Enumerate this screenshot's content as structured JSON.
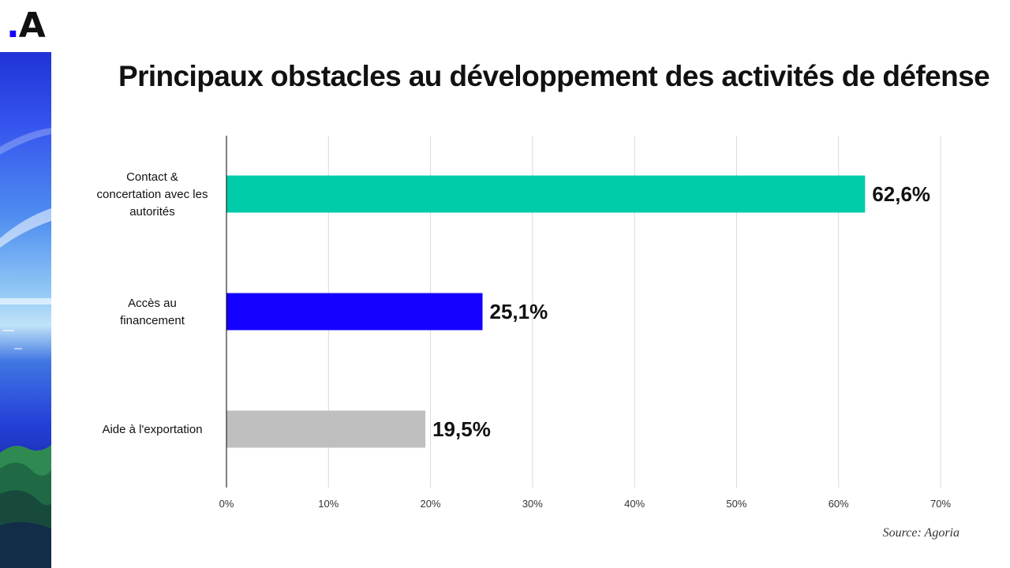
{
  "logo": {
    "dot": ".",
    "letter": "A"
  },
  "chart_data": {
    "type": "bar",
    "orientation": "horizontal",
    "title": "Principaux obstacles au développement des activités de défense",
    "categories": [
      [
        "Contact &",
        "concertation avec les",
        "autorités"
      ],
      [
        "Accès au",
        "financement"
      ],
      [
        "Aide à l'exportation"
      ]
    ],
    "values": [
      62.6,
      25.1,
      19.5
    ],
    "value_labels": [
      "62,6%",
      "25,1%",
      "19,5%"
    ],
    "bar_colors": [
      "#00ccaa",
      "#1400ff",
      "#bfbfbf"
    ],
    "xlim": [
      0,
      70
    ],
    "xticks": [
      0,
      10,
      20,
      30,
      40,
      50,
      60,
      70
    ],
    "xtick_labels": [
      "0%",
      "10%",
      "20%",
      "30%",
      "40%",
      "50%",
      "60%",
      "70%"
    ],
    "grid": "vertical",
    "source": "Source: Agoria"
  }
}
